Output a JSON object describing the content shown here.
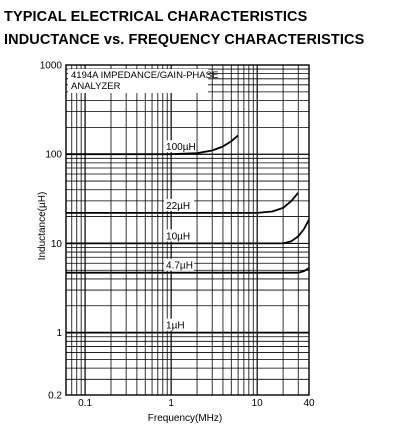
{
  "title": "TYPICAL ELECTRICAL CHARACTERISTICS",
  "subtitle": "INDUCTANCE vs. FREQUENCY CHARACTERISTICS",
  "chart_data": {
    "type": "line",
    "annotation": [
      "4194A IMPEDANCE/GAIN-PHASE",
      "ANALYZER"
    ],
    "xlabel": "Frequency(MHz)",
    "ylabel": "Inductance(µH)",
    "x_scale": "log",
    "y_scale": "log",
    "xlim": [
      0.06,
      40
    ],
    "ylim": [
      0.2,
      1000
    ],
    "x_ticks": [
      {
        "value": 0.1,
        "label": "0.1"
      },
      {
        "value": 1,
        "label": "1"
      },
      {
        "value": 10,
        "label": "10"
      },
      {
        "value": 40,
        "label": "40"
      }
    ],
    "y_ticks": [
      {
        "value": 0.2,
        "label": "0.2"
      },
      {
        "value": 1,
        "label": "1"
      },
      {
        "value": 10,
        "label": "10"
      },
      {
        "value": 100,
        "label": "100"
      },
      {
        "value": 1000,
        "label": "1000"
      }
    ],
    "grid": true,
    "series": [
      {
        "name": "100µH",
        "x": [
          0.06,
          1,
          2,
          3,
          4,
          5,
          6
        ],
        "y": [
          100,
          100,
          103,
          110,
          122,
          140,
          162
        ]
      },
      {
        "name": "22µH",
        "x": [
          0.06,
          10,
          15,
          20,
          25,
          30
        ],
        "y": [
          22,
          22,
          22.8,
          25,
          30,
          37
        ]
      },
      {
        "name": "10µH",
        "x": [
          0.06,
          20,
          25,
          30,
          35,
          40
        ],
        "y": [
          10,
          10,
          10.6,
          12,
          14.5,
          18.5
        ]
      },
      {
        "name": "4.7µH",
        "x": [
          0.06,
          30,
          35,
          40
        ],
        "y": [
          4.7,
          4.7,
          4.9,
          5.3
        ]
      },
      {
        "name": "1µH",
        "x": [
          0.06,
          40
        ],
        "y": [
          1,
          1
        ]
      }
    ]
  }
}
